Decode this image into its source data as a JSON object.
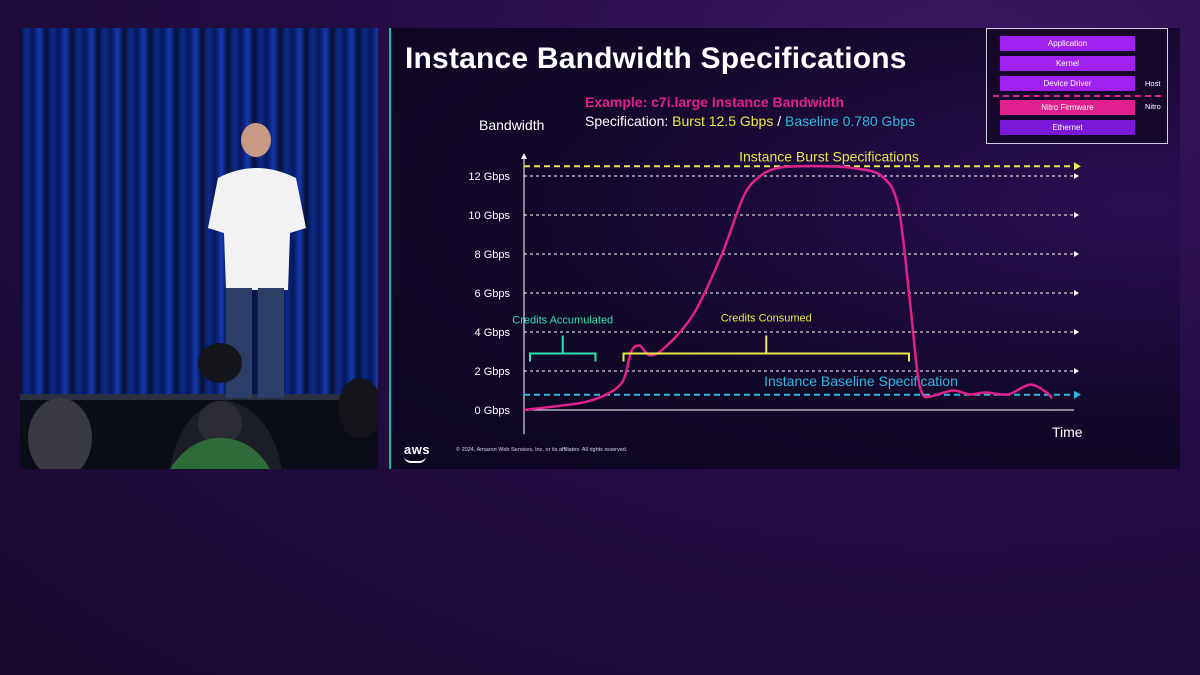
{
  "slide": {
    "title": "Instance Bandwidth Specifications",
    "example_label": "Example:  c7i.large Instance Bandwidth",
    "spec_prefix": "Specification: ",
    "spec_burst": "Burst 12.5 Gbps",
    "spec_separator": " / ",
    "spec_baseline": "Baseline 0.780 Gbps",
    "copyright": "© 2024, Amazon Web Services, Inc. or its affiliates. All rights reserved.",
    "logo": "aws"
  },
  "stack": {
    "layers": [
      {
        "label": "Application",
        "color": "#a020f0"
      },
      {
        "label": "Kernel",
        "color": "#a020f0"
      },
      {
        "label": "Device Driver",
        "color": "#a020f0"
      },
      {
        "label": "Nitro Firmware",
        "color": "#e0208c"
      },
      {
        "label": "Ethernet",
        "color": "#7a18d8"
      }
    ],
    "host_label": "Host",
    "nitro_label": "Nitro"
  },
  "colors": {
    "curve": "#e0208c",
    "burst_line": "#e8e84a",
    "baseline_line": "#30b8e0",
    "accumulated": "#2ee0b0",
    "consumed": "#e8e84a"
  },
  "chart_data": {
    "type": "line",
    "title": "Instance Bandwidth Specifications",
    "xlabel": "Time",
    "ylabel": "Bandwidth",
    "yticks": [
      "0 Gbps",
      "2 Gbps",
      "4 Gbps",
      "6 Gbps",
      "8  Gbps",
      "10 Gbps",
      "12 Gbps"
    ],
    "ytick_values": [
      0,
      2,
      4,
      6,
      8,
      10,
      12
    ],
    "ylim": [
      0,
      13
    ],
    "xlim": [
      0,
      100
    ],
    "grid": true,
    "series": [
      {
        "x": [
          0,
          6,
          11,
          15,
          18,
          19.5,
          21,
          23,
          26,
          31,
          36,
          40,
          43,
          46,
          50,
          55,
          60,
          65,
          68,
          70,
          71.5,
          72.5,
          74,
          78,
          81,
          84,
          88,
          92,
          95,
          96
        ],
        "y": [
          0,
          0.2,
          0.4,
          0.8,
          1.5,
          3.0,
          3.3,
          2.8,
          3.3,
          5.0,
          8.0,
          11.0,
          12.0,
          12.4,
          12.5,
          12.5,
          12.4,
          12.0,
          10.5,
          6.0,
          2.0,
          0.8,
          0.7,
          1.0,
          0.8,
          0.9,
          0.8,
          1.3,
          0.9,
          0.6
        ]
      }
    ],
    "reference_lines": [
      {
        "label": "Instance Burst Specifications",
        "value": 12.5
      },
      {
        "label": "Instance Baseline Specification",
        "value": 0.78
      }
    ],
    "annotations": [
      {
        "label": "Credits Accumulated",
        "x_range": [
          0,
          13
        ]
      },
      {
        "label": "Credits Consumed",
        "x_range": [
          17,
          70
        ]
      }
    ]
  }
}
